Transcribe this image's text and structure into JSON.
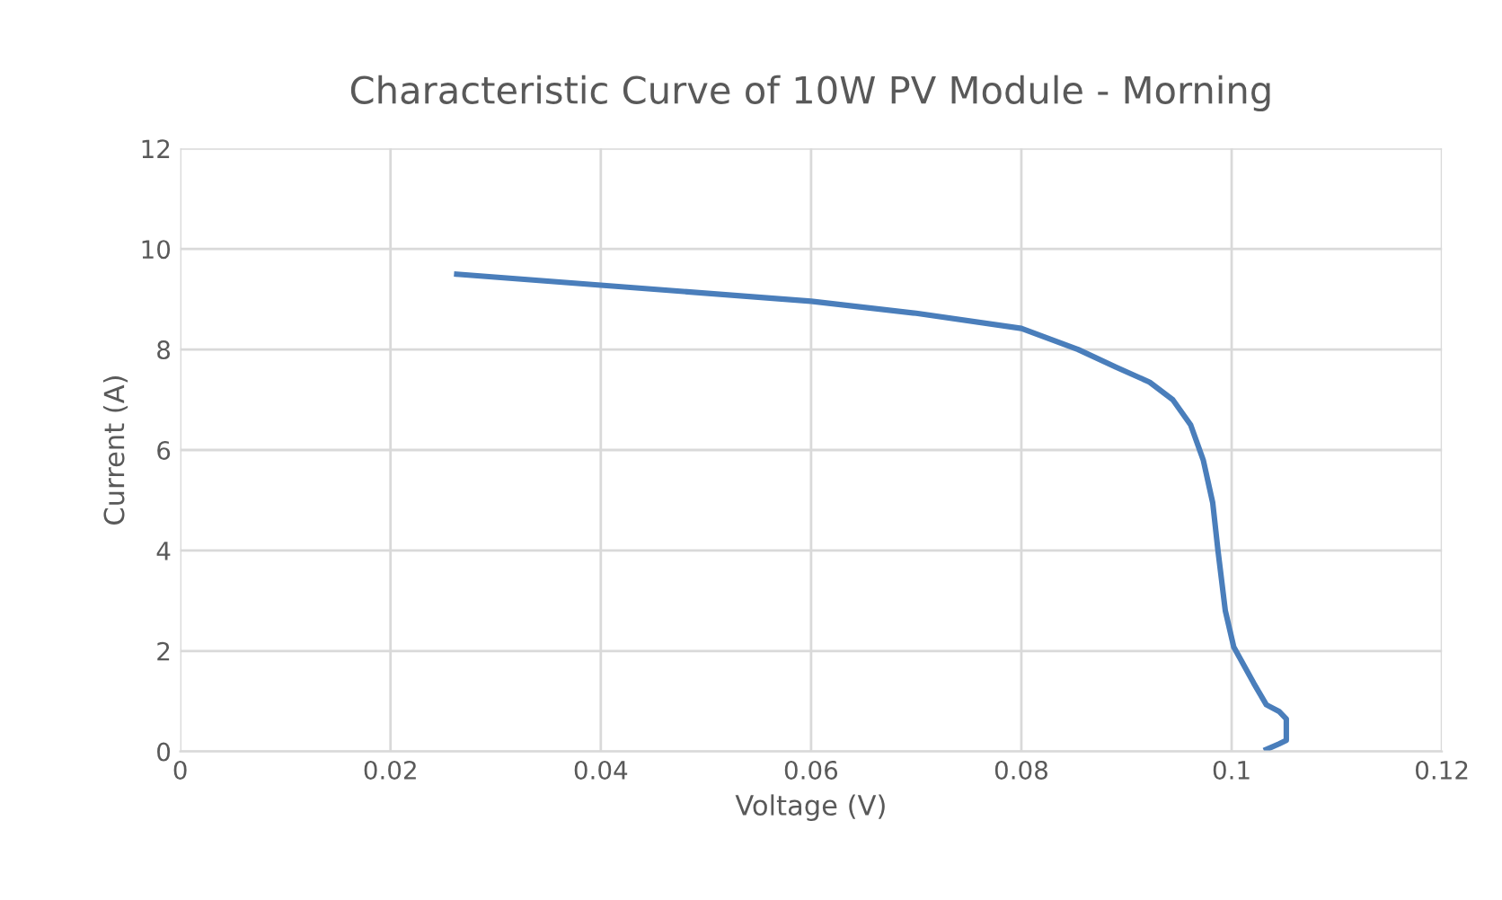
{
  "chart_data": {
    "type": "line",
    "title": "Characteristic Curve of 10W PV Module - Morning",
    "xlabel": "Voltage (V)",
    "ylabel": "Current (A)",
    "series": [
      {
        "color": "#4a7ebb",
        "x": [
          0.0263,
          0.04,
          0.06,
          0.07,
          0.08,
          0.0854,
          0.089,
          0.0922,
          0.0944,
          0.0961,
          0.0973,
          0.0982,
          0.0987,
          0.0994,
          0.1002,
          0.1021,
          0.1033,
          0.1045,
          0.1052,
          0.1052,
          0.1045,
          0.1033
        ],
        "values": [
          9.5,
          9.28,
          8.96,
          8.72,
          8.42,
          8.0,
          7.65,
          7.35,
          7.0,
          6.5,
          5.8,
          4.95,
          4.0,
          2.8,
          2.08,
          1.36,
          0.93,
          0.8,
          0.65,
          0.22,
          0.15,
          0.04
        ]
      }
    ],
    "xlim": [
      0,
      0.12
    ],
    "xticks": [
      0,
      0.02,
      0.04,
      0.06,
      0.08,
      0.1,
      0.12
    ],
    "ylim": [
      0,
      12
    ],
    "yticks": [
      0,
      2,
      4,
      6,
      8,
      10,
      12
    ],
    "grid": true,
    "marker": "none",
    "line_style": "solid"
  }
}
